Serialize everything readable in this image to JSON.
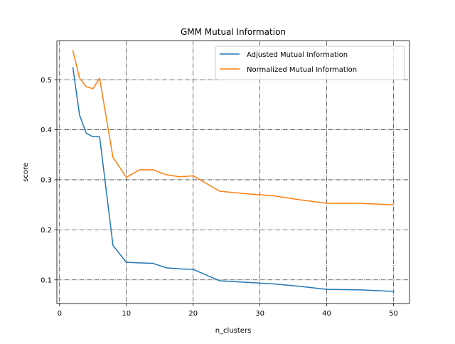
{
  "chart_data": {
    "type": "line",
    "title": "GMM Mutual Information",
    "xlabel": "n_clusters",
    "ylabel": "score",
    "xlim": [
      -0.4,
      52.4
    ],
    "ylim": [
      0.0525,
      0.5775
    ],
    "xticks": [
      0,
      10,
      20,
      30,
      40,
      50
    ],
    "yticks": [
      0.1,
      0.2,
      0.3,
      0.4,
      0.5
    ],
    "xtick_labels": [
      "0",
      "10",
      "20",
      "30",
      "40",
      "50"
    ],
    "ytick_labels": [
      "0.1",
      "0.2",
      "0.3",
      "0.4",
      "0.5"
    ],
    "grid": true,
    "grid_style": "dash-dot",
    "legend_position": "top-right",
    "series": [
      {
        "name": "Adjusted Mutual Information",
        "color": "#1f77b4",
        "x": [
          2,
          3,
          4,
          5,
          6,
          8,
          10,
          12,
          14,
          16,
          18,
          20,
          24,
          28,
          32,
          36,
          40,
          45,
          50
        ],
        "y": [
          0.524,
          0.429,
          0.393,
          0.386,
          0.386,
          0.169,
          0.135,
          0.134,
          0.133,
          0.124,
          0.122,
          0.121,
          0.098,
          0.095,
          0.092,
          0.087,
          0.081,
          0.08,
          0.077
        ]
      },
      {
        "name": "Normalized Mutual Information",
        "color": "#ff7f0e",
        "x": [
          2,
          3,
          4,
          5,
          6,
          8,
          10,
          12,
          14,
          16,
          18,
          20,
          24,
          28,
          32,
          36,
          40,
          45,
          50
        ],
        "y": [
          0.558,
          0.503,
          0.486,
          0.482,
          0.503,
          0.345,
          0.305,
          0.32,
          0.32,
          0.31,
          0.306,
          0.308,
          0.277,
          0.272,
          0.268,
          0.26,
          0.253,
          0.253,
          0.25
        ]
      }
    ]
  }
}
